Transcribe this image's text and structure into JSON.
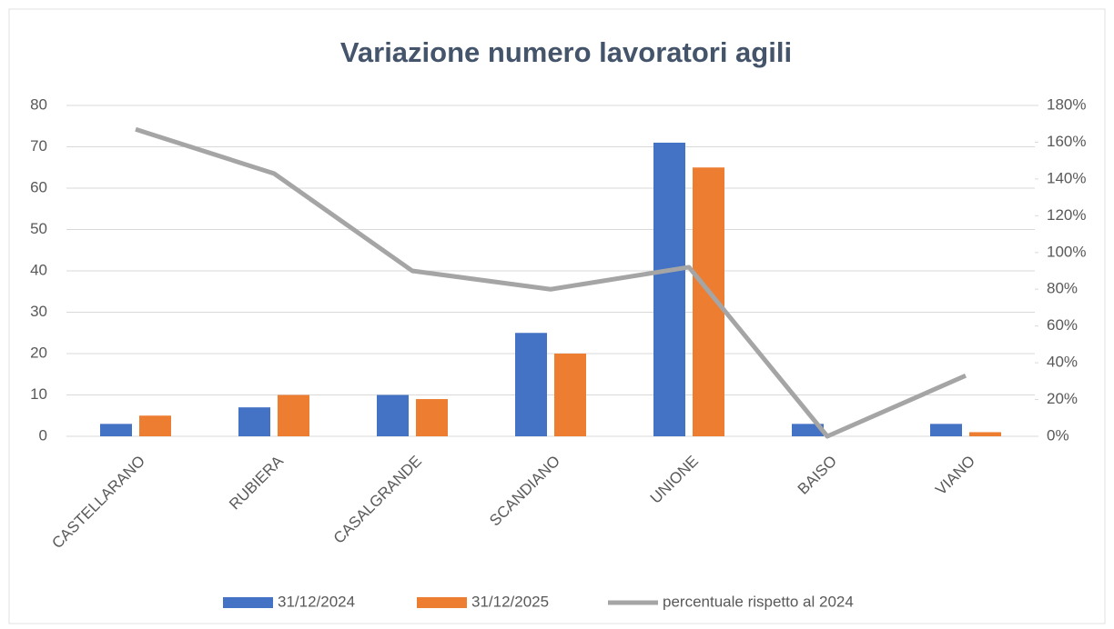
{
  "chart_data": {
    "type": "bar",
    "title": "Variazione numero lavoratori agili",
    "categories": [
      "CASTELLARANO",
      "RUBIERA",
      "CASALGRANDE",
      "SCANDIANO",
      "UNIONE",
      "BAISO",
      "VIANO"
    ],
    "series": [
      {
        "name": "31/12/2024",
        "color": "#4472c4",
        "values": [
          3,
          7,
          10,
          25,
          71,
          3,
          3
        ]
      },
      {
        "name": "31/12/2025",
        "color": "#ed7d31",
        "values": [
          5,
          10,
          9,
          20,
          65,
          0,
          1
        ]
      },
      {
        "name": "percentuale rispetto al 2024",
        "color": "#a5a5a5",
        "type": "line",
        "axis": "y2",
        "values": [
          167,
          143,
          90,
          80,
          92,
          0,
          33
        ]
      }
    ],
    "ylim": [
      0,
      80
    ],
    "yticks": [
      0,
      10,
      20,
      30,
      40,
      50,
      60,
      70,
      80
    ],
    "y2lim": [
      0,
      180
    ],
    "y2ticks": [
      {
        "value": 0,
        "label": "0%"
      },
      {
        "value": 20,
        "label": "20%"
      },
      {
        "value": 40,
        "label": "40%"
      },
      {
        "value": 60,
        "label": "60%"
      },
      {
        "value": 80,
        "label": "80%"
      },
      {
        "value": 100,
        "label": "100%"
      },
      {
        "value": 120,
        "label": "120%"
      },
      {
        "value": 140,
        "label": "140%"
      },
      {
        "value": 160,
        "label": "160%"
      },
      {
        "value": 180,
        "label": "180%"
      }
    ],
    "grid": true,
    "legend": "bottom"
  }
}
